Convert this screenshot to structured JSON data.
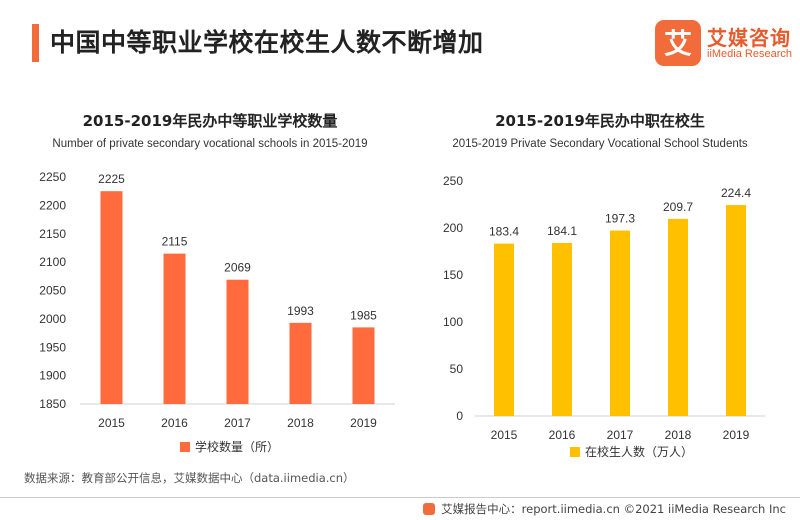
{
  "header": {
    "title": "中国中等职业学校在校生人数不断增加",
    "accent_color": "#f26b3a"
  },
  "logo": {
    "mark_char": "艾",
    "name_cn": "艾媒咨询",
    "name_en": "iiMedia Research",
    "color": "#e85a2c"
  },
  "chart_data": [
    {
      "type": "bar",
      "title": "2015-2019年民办中等职业学校数量",
      "subtitle": "Number of private secondary vocational schools in 2015-2019",
      "categories": [
        "2015",
        "2016",
        "2017",
        "2018",
        "2019"
      ],
      "series": [
        {
          "name": "学校数量（所）",
          "values": [
            2225,
            2115,
            2069,
            1993,
            1985
          ],
          "color": "#ff6b3d"
        }
      ],
      "data_labels": [
        "2225",
        "2115",
        "2069",
        "1993",
        "1985"
      ],
      "ylim": [
        1850,
        2250
      ],
      "yticks": [
        1850,
        1900,
        1950,
        2000,
        2050,
        2100,
        2150,
        2200,
        2250
      ],
      "xlabel": "",
      "ylabel": "",
      "legend": "bottom-center",
      "grid": false
    },
    {
      "type": "bar",
      "title": "2015-2019年民办中职在校生",
      "subtitle": "2015-2019 Private Secondary Vocational School Students",
      "categories": [
        "2015",
        "2016",
        "2017",
        "2018",
        "2019"
      ],
      "series": [
        {
          "name": "在校生人数（万人）",
          "values": [
            183.4,
            184.1,
            197.3,
            209.7,
            224.4
          ],
          "color": "#ffc000"
        }
      ],
      "data_labels": [
        "183.4",
        "184.1",
        "197.3",
        "209.7",
        "224.4"
      ],
      "ylim": [
        0,
        250
      ],
      "yticks": [
        0,
        50,
        100,
        150,
        200,
        250
      ],
      "xlabel": "",
      "ylabel": "",
      "legend": "bottom-center",
      "grid": false
    }
  ],
  "source": "数据来源：教育部公开信息，艾媒数据中心（data.iimedia.cn）",
  "footer": {
    "text": "艾媒报告中心：report.iimedia.cn   ©2021  iiMedia Research  Inc"
  }
}
